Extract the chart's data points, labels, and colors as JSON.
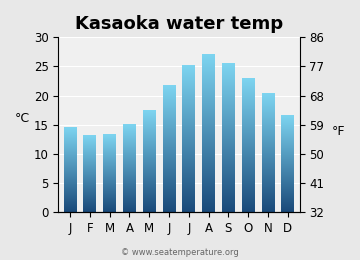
{
  "months": [
    "J",
    "F",
    "M",
    "A",
    "M",
    "J",
    "J",
    "A",
    "S",
    "O",
    "N",
    "D"
  ],
  "values_c": [
    14.5,
    13.2,
    13.3,
    15.0,
    17.4,
    21.7,
    25.2,
    27.0,
    25.6,
    23.0,
    20.3,
    16.6
  ],
  "title": "Kasaoka water temp",
  "ylabel_left": "°C",
  "ylabel_right": "°F",
  "ylim_c": [
    0,
    30
  ],
  "yticks_c": [
    0,
    5,
    10,
    15,
    20,
    25,
    30
  ],
  "yticks_f": [
    32,
    41,
    50,
    59,
    68,
    77,
    86
  ],
  "bar_color_top": "#7dd4f0",
  "bar_color_bottom": "#1a4a7a",
  "background_color": "#e8e8e8",
  "plot_bg_color": "#f0f0f0",
  "watermark": "© www.seatemperature.org",
  "title_fontsize": 13,
  "tick_fontsize": 8.5,
  "label_fontsize": 9
}
